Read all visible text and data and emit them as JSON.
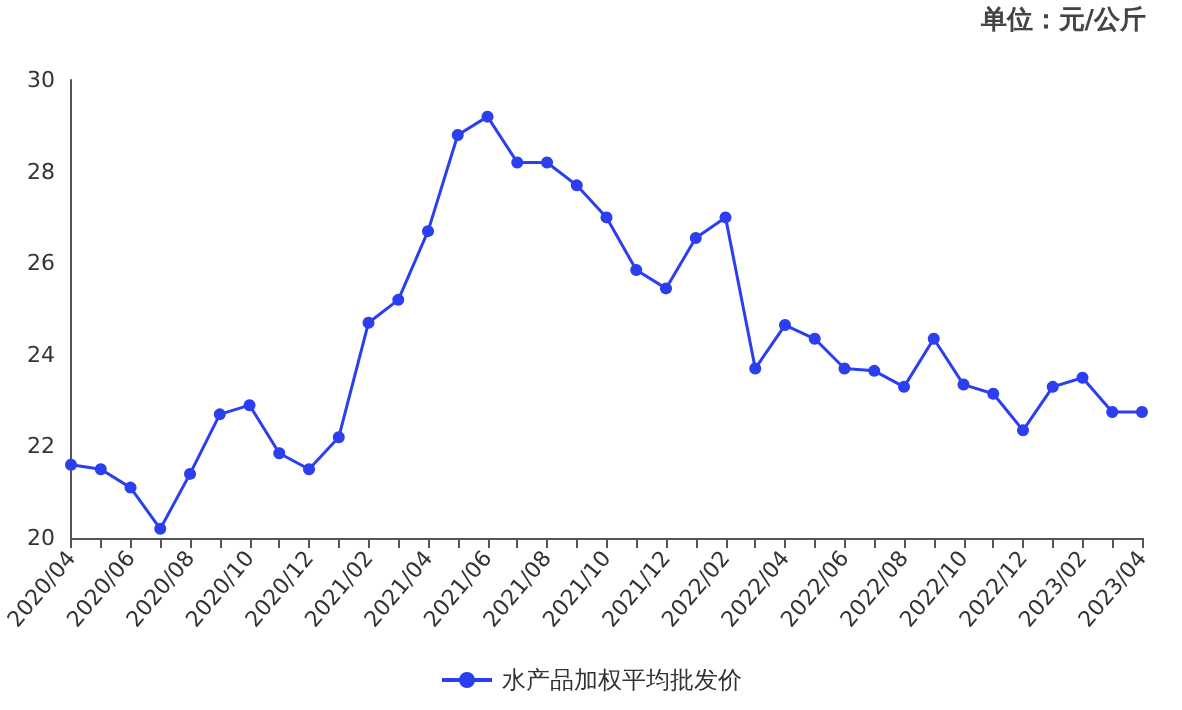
{
  "chart_data": {
    "type": "line",
    "annotations": [
      "单位：元/公斤"
    ],
    "categories": [
      "2020/04",
      null,
      "2020/06",
      null,
      "2020/08",
      null,
      "2020/10",
      null,
      "2020/12",
      null,
      "2021/02",
      null,
      "2021/04",
      null,
      "2021/06",
      null,
      "2021/08",
      null,
      "2021/10",
      null,
      "2021/12",
      null,
      "2022/02",
      null,
      "2022/04",
      null,
      "2022/06",
      null,
      "2022/08",
      null,
      "2022/10",
      null,
      "2022/12",
      null,
      "2023/02",
      null,
      "2023/04"
    ],
    "series": [
      {
        "name": "水产品加权平均批发价",
        "color": "#2b3ff0",
        "values": [
          21.6,
          21.5,
          21.1,
          20.2,
          21.4,
          22.7,
          22.9,
          21.85,
          21.5,
          22.2,
          24.7,
          25.2,
          26.7,
          28.8,
          29.2,
          28.2,
          28.2,
          27.7,
          27.0,
          25.85,
          25.45,
          26.55,
          27.0,
          23.7,
          24.65,
          24.35,
          23.7,
          23.65,
          23.3,
          24.35,
          23.35,
          23.15,
          22.35,
          23.3,
          23.5,
          22.75,
          22.75
        ]
      }
    ],
    "ylim": [
      20,
      30
    ],
    "yticks": [
      20,
      22,
      24,
      26,
      28,
      30
    ],
    "grid": false,
    "legend": "bottom",
    "marker": "circle",
    "line_style": "solid"
  }
}
